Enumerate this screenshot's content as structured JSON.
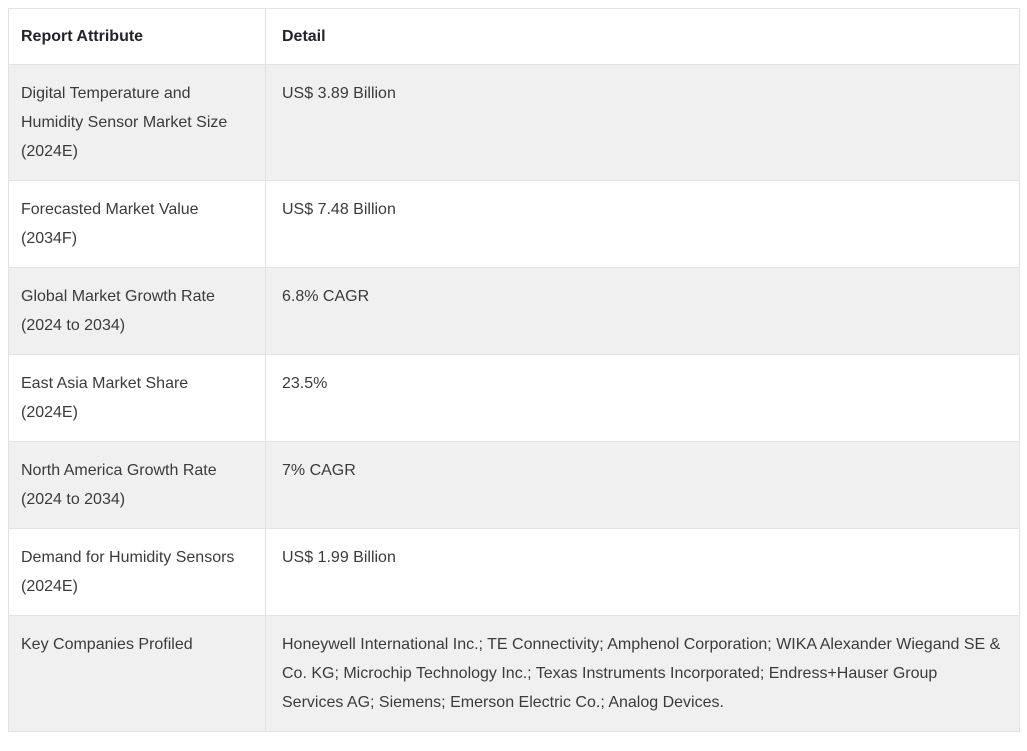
{
  "table": {
    "headers": [
      {
        "label": "Report Attribute"
      },
      {
        "label": "Detail"
      }
    ],
    "rows": [
      {
        "attribute": "Digital Temperature and Humidity Sensor Market Size (2024E)",
        "detail": "US$ 3.89 Billion"
      },
      {
        "attribute": "Forecasted Market Value (2034F)",
        "detail": "US$ 7.48 Billion"
      },
      {
        "attribute": "Global Market Growth Rate (2024 to 2034)",
        "detail": "6.8% CAGR"
      },
      {
        "attribute": "East Asia Market Share (2024E)",
        "detail": "23.5%"
      },
      {
        "attribute": "North America Growth Rate (2024 to 2034)",
        "detail": "7% CAGR"
      },
      {
        "attribute": "Demand for Humidity Sensors (2024E)",
        "detail": "US$ 1.99 Billion"
      },
      {
        "attribute": "Key Companies Profiled",
        "detail": "Honeywell International Inc.; TE Connectivity; Amphenol Corporation; WIKA Alexander Wiegand SE & Co. KG; Microchip Technology Inc.; Texas Instruments Incorporated; Endress+Hauser Group Services AG; Siemens; Emerson Electric Co.; Analog Devices."
      }
    ],
    "colors": {
      "row_alt_bg": "#f0f0f1",
      "row_bg": "#ffffff",
      "border": "#e2e2e4",
      "header_text": "#212529",
      "body_text": "#3b3b3d"
    }
  },
  "chart_data": {
    "type": "table",
    "title": "",
    "columns": [
      "Report Attribute",
      "Detail"
    ],
    "rows": [
      [
        "Digital Temperature and Humidity Sensor Market Size (2024E)",
        "US$ 3.89 Billion"
      ],
      [
        "Forecasted Market Value (2034F)",
        "US$ 7.48 Billion"
      ],
      [
        "Global Market Growth Rate (2024 to 2034)",
        "6.8% CAGR"
      ],
      [
        "East Asia Market Share (2024E)",
        "23.5%"
      ],
      [
        "North America Growth Rate (2024 to 2034)",
        "7% CAGR"
      ],
      [
        "Demand for Humidity Sensors (2024E)",
        "US$ 1.99 Billion"
      ],
      [
        "Key Companies Profiled",
        "Honeywell International Inc.; TE Connectivity; Amphenol Corporation; WIKA Alexander Wiegand SE & Co. KG; Microchip Technology Inc.; Texas Instruments Incorporated; Endress+Hauser Group Services AG; Siemens; Emerson Electric Co.; Analog Devices."
      ]
    ]
  }
}
